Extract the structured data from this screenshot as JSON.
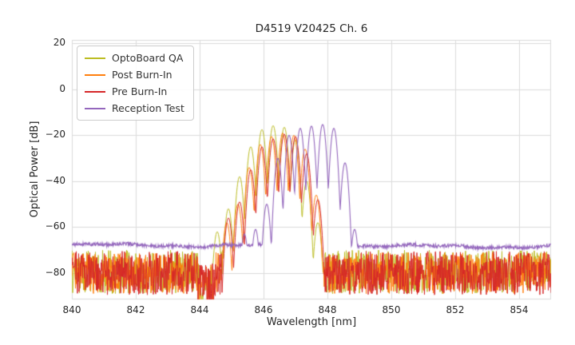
{
  "chart_data": {
    "type": "line",
    "title": "D4519 V20425 Ch. 6",
    "xlabel": "Wavelength [nm]",
    "ylabel": "Optical Power [dB]",
    "xlim": [
      840,
      855
    ],
    "ylim": [
      -91.5,
      21.5
    ],
    "grid": true,
    "legend_position": "upper-left",
    "sample_step_nm": 0.0125,
    "grid_color": "#dcdcdc",
    "x_ticks": [
      {
        "v": 840,
        "label": "840"
      },
      {
        "v": 842,
        "label": "842"
      },
      {
        "v": 844,
        "label": "844"
      },
      {
        "v": 846,
        "label": "846"
      },
      {
        "v": 848,
        "label": "848"
      },
      {
        "v": 850,
        "label": "850"
      },
      {
        "v": 852,
        "label": "852"
      },
      {
        "v": 854,
        "label": "854"
      }
    ],
    "y_ticks": [
      {
        "v": 20,
        "label": "20"
      },
      {
        "v": 0,
        "label": "0"
      },
      {
        "v": -20,
        "label": "−20"
      },
      {
        "v": -40,
        "label": "−40"
      },
      {
        "v": -60,
        "label": "−60"
      },
      {
        "v": -80,
        "label": "−80"
      }
    ],
    "series": [
      {
        "name": "OptoBoard QA",
        "color": "#bcbd22",
        "line_width": 1,
        "seed": 7,
        "noise": {
          "kind": "spiky",
          "base": -70,
          "depth": 19
        },
        "notch_nm": [
          843.95,
          844.5
        ],
        "mode_width_nm": 0.1,
        "sharpness_db": 8.2,
        "peaks_nm_db": [
          [
            844.55,
            -62
          ],
          [
            844.9,
            -52
          ],
          [
            845.25,
            -38
          ],
          [
            845.6,
            -25
          ],
          [
            845.95,
            -17.5
          ],
          [
            846.3,
            -15.8
          ],
          [
            846.65,
            -16.5
          ],
          [
            847.0,
            -22
          ],
          [
            847.35,
            -40
          ],
          [
            847.7,
            -58
          ]
        ]
      },
      {
        "name": "Post Burn-In",
        "color": "#ff7f0e",
        "line_width": 1,
        "seed": 13,
        "noise": {
          "kind": "spiky",
          "base": -71,
          "depth": 18
        },
        "notch_nm": [
          843.95,
          844.5
        ],
        "mode_width_nm": 0.1,
        "sharpness_db": 8.2,
        "peaks_nm_db": [
          [
            844.85,
            -58
          ],
          [
            845.2,
            -50
          ],
          [
            845.55,
            -34
          ],
          [
            845.9,
            -24
          ],
          [
            846.25,
            -20.5
          ],
          [
            846.6,
            -19
          ],
          [
            846.95,
            -20
          ],
          [
            847.3,
            -26
          ],
          [
            847.65,
            -46
          ]
        ]
      },
      {
        "name": "Pre Burn-In",
        "color": "#d62728",
        "line_width": 1,
        "seed": 29,
        "noise": {
          "kind": "spiky",
          "base": -70.5,
          "depth": 19
        },
        "notch_nm": [
          843.95,
          844.5
        ],
        "mode_width_nm": 0.1,
        "sharpness_db": 8.2,
        "peaks_nm_db": [
          [
            844.9,
            -56
          ],
          [
            845.25,
            -49
          ],
          [
            845.6,
            -35
          ],
          [
            845.95,
            -25
          ],
          [
            846.3,
            -21.5
          ],
          [
            846.65,
            -19.5
          ],
          [
            847.0,
            -20.5
          ],
          [
            847.35,
            -28
          ],
          [
            847.7,
            -48
          ]
        ]
      },
      {
        "name": "Reception Test",
        "color": "#9467bd",
        "line_width": 1.1,
        "seed": 41,
        "noise": {
          "kind": "flat",
          "base": -67.8,
          "amp": 1.5
        },
        "mode_width_nm": 0.095,
        "sharpness_db": 8.2,
        "peaks_nm_db": [
          [
            845.4,
            -63
          ],
          [
            845.75,
            -61
          ],
          [
            846.1,
            -50
          ],
          [
            846.45,
            -30
          ],
          [
            846.8,
            -20
          ],
          [
            847.15,
            -17
          ],
          [
            847.5,
            -16
          ],
          [
            847.85,
            -15.3
          ],
          [
            848.2,
            -17
          ],
          [
            848.55,
            -32
          ],
          [
            848.85,
            -61
          ]
        ]
      }
    ]
  }
}
